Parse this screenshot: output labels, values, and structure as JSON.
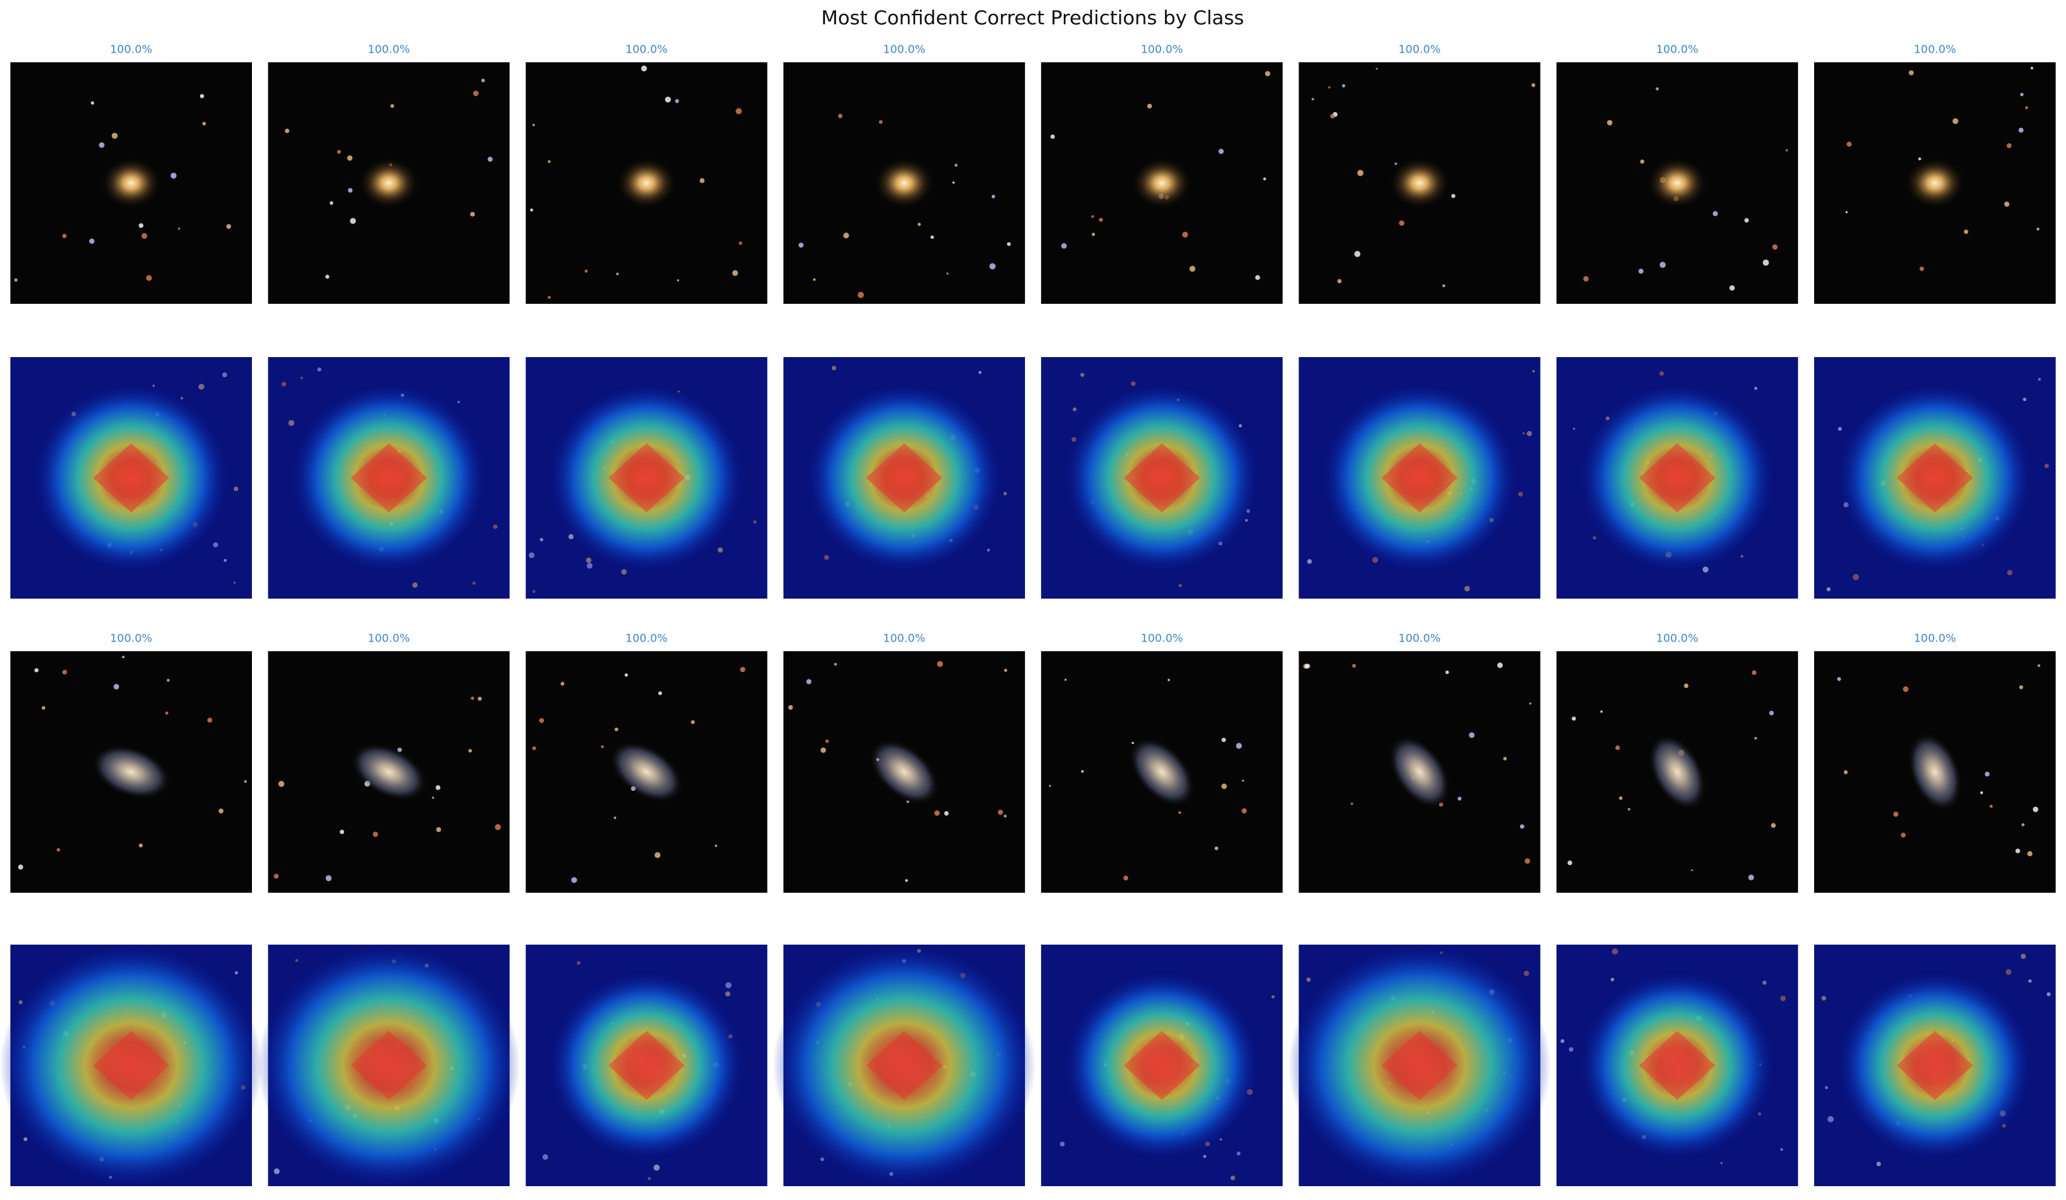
{
  "title": "Most Confident Correct Predictions by Class",
  "confidence_rows": [
    [
      "100.0%",
      "100.0%",
      "100.0%",
      "100.0%",
      "100.0%",
      "100.0%",
      "100.0%",
      "100.0%"
    ],
    [
      "100.0%",
      "100.0%",
      "100.0%",
      "100.0%",
      "100.0%",
      "100.0%",
      "100.0%",
      "100.0%"
    ]
  ]
}
